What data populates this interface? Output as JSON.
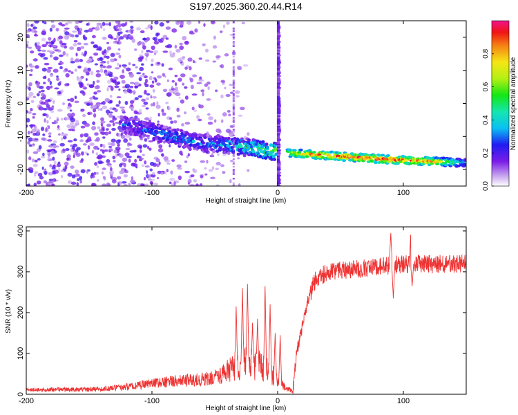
{
  "chart_data": [
    {
      "type": "heatmap",
      "title": "S197.2025.360.20.44.R14",
      "xlabel": "Height of straight line (km)",
      "ylabel": "Frequency (Hz)",
      "xlim": [
        -200,
        150
      ],
      "ylim": [
        -25,
        25
      ],
      "xticks": [
        -200,
        -100,
        0,
        100
      ],
      "xtick_labels": [
        "-200",
        "-100",
        "0",
        "100"
      ],
      "yticks": [
        20,
        10,
        0,
        -10,
        -20
      ],
      "ytick_labels": [
        "20",
        "10",
        "0",
        "-10",
        "-20"
      ],
      "colorbar": {
        "label": "Normalized spectral amplitude",
        "range": [
          0,
          1
        ],
        "ticks": [
          0.0,
          0.2,
          0.4,
          0.6,
          0.8
        ],
        "tick_labels": [
          "0.0",
          "0.2",
          "0.4",
          "0.6",
          "0.8"
        ]
      },
      "signal_track": {
        "x": [
          -120,
          -100,
          -80,
          -60,
          -40,
          -20,
          -5,
          10,
          30,
          60,
          90,
          120,
          150
        ],
        "frequency": [
          -6.5,
          -8.5,
          -10.5,
          -12,
          -12.5,
          -13.5,
          -14.5,
          -15,
          -15.5,
          -16.3,
          -17,
          -17.5,
          -18
        ],
        "peak_amplitude": [
          0.25,
          0.3,
          0.3,
          0.3,
          0.35,
          0.5,
          0.55,
          0.7,
          0.9,
          0.95,
          0.95,
          0.9,
          0.35
        ]
      },
      "noise_region_x": [
        -200,
        -40
      ]
    },
    {
      "type": "line",
      "xlabel": "Height of straight line (km)",
      "ylabel": "SNR (10 * v/v)",
      "xlim": [
        -200,
        150
      ],
      "ylim": [
        0,
        410
      ],
      "xticks": [
        -200,
        -100,
        0,
        100
      ],
      "xtick_labels": [
        "-200",
        "-100",
        "0",
        "100"
      ],
      "yticks": [
        0,
        100,
        200,
        300,
        400
      ],
      "ytick_labels": [
        "0",
        "100",
        "200",
        "300",
        "400"
      ],
      "series": [
        {
          "name": "SNR",
          "color": "#ee3333",
          "x": [
            -200,
            -180,
            -160,
            -140,
            -120,
            -100,
            -80,
            -60,
            -45,
            -35,
            -25,
            -15,
            -5,
            0,
            5,
            10,
            12,
            15,
            20,
            25,
            30,
            40,
            60,
            80,
            90,
            92,
            100,
            110,
            120,
            150
          ],
          "baseline": [
            8,
            9,
            9,
            10,
            14,
            20,
            25,
            28,
            35,
            55,
            60,
            55,
            40,
            25,
            15,
            8,
            5,
            100,
            170,
            240,
            280,
            300,
            305,
            312,
            316,
            318,
            318,
            320,
            318,
            320
          ],
          "spikes": [
            {
              "x": -33,
              "value": 215
            },
            {
              "x": -28,
              "value": 260
            },
            {
              "x": -24,
              "value": 270
            },
            {
              "x": -20,
              "value": 175
            },
            {
              "x": -16,
              "value": 185
            },
            {
              "x": -10,
              "value": 265
            },
            {
              "x": -6,
              "value": 220
            },
            {
              "x": -2,
              "value": 150
            },
            {
              "x": 2,
              "value": 145
            },
            {
              "x": 90,
              "value": 395
            },
            {
              "x": 92,
              "value": 235
            },
            {
              "x": 106,
              "value": 405
            },
            {
              "x": 107,
              "value": 265
            }
          ]
        }
      ]
    }
  ]
}
